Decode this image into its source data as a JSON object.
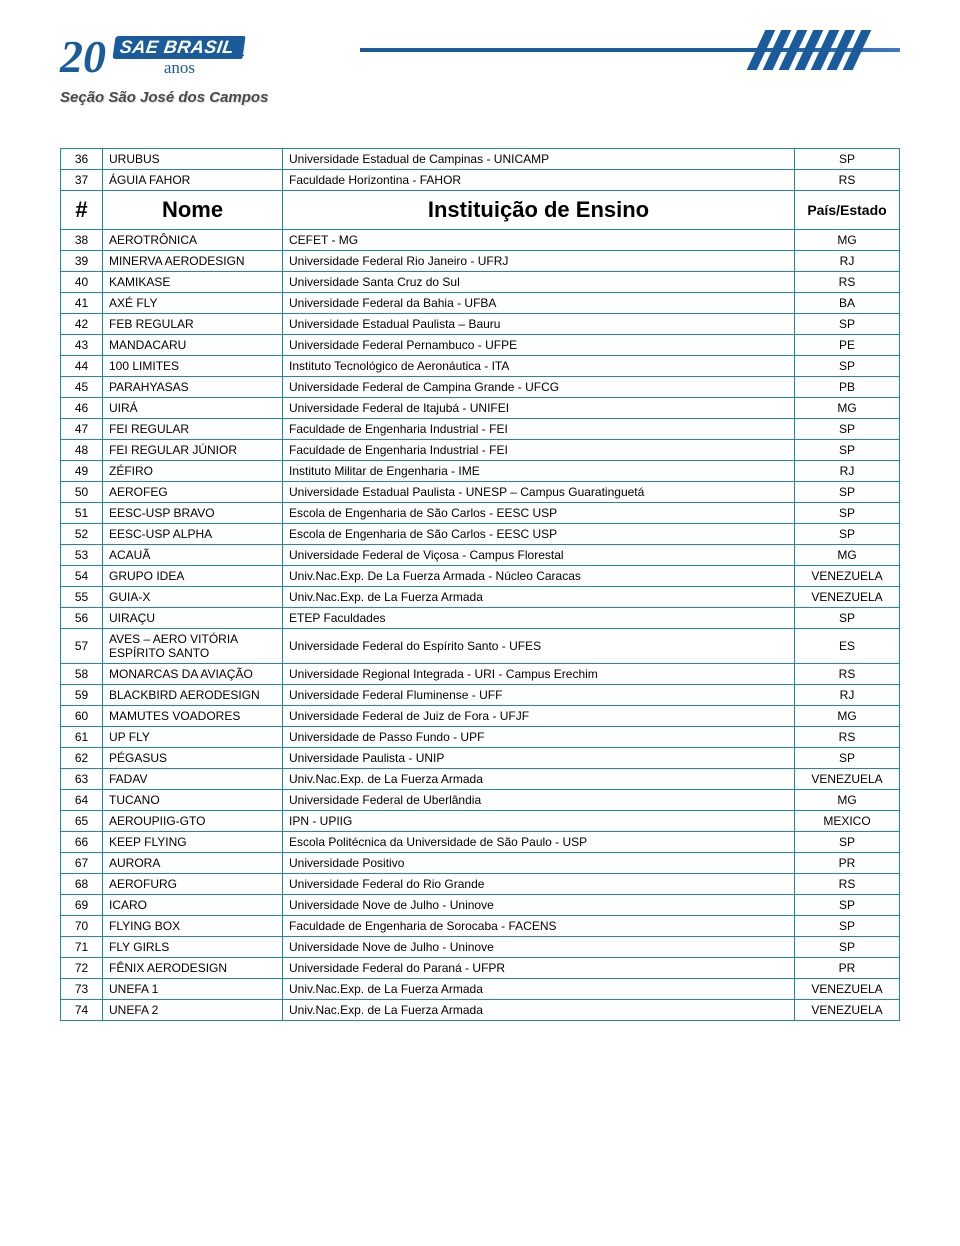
{
  "header": {
    "twenty": "20",
    "sae": "SAE BRASIL",
    "anos": "anos",
    "secao": "Seção São José dos Campos"
  },
  "colors": {
    "border": "#1a8ba8",
    "brand": "#1a5b9c",
    "text": "#000000",
    "bg": "#ffffff"
  },
  "table": {
    "header": {
      "num": "#",
      "nome": "Nome",
      "inst": "Instituição de Ensino",
      "estado": "País/Estado"
    },
    "header_row_index": 2,
    "rows": [
      {
        "n": "36",
        "nome": "URUBUS",
        "inst": "Universidade Estadual de Campinas - UNICAMP",
        "e": "SP"
      },
      {
        "n": "37",
        "nome": "ÁGUIA FAHOR",
        "inst": "Faculdade Horizontina - FAHOR",
        "e": "RS"
      },
      {
        "n": "38",
        "nome": "AEROTRÔNICA",
        "inst": "CEFET - MG",
        "e": "MG"
      },
      {
        "n": "39",
        "nome": "MINERVA AERODESIGN",
        "inst": "Universidade Federal Rio Janeiro - UFRJ",
        "e": "RJ"
      },
      {
        "n": "40",
        "nome": "KAMIKASE",
        "inst": "Universidade Santa Cruz do Sul",
        "e": "RS"
      },
      {
        "n": "41",
        "nome": "AXÉ FLY",
        "inst": "Universidade Federal da Bahia - UFBA",
        "e": "BA"
      },
      {
        "n": "42",
        "nome": "FEB REGULAR",
        "inst": "Universidade Estadual Paulista – Bauru",
        "e": "SP"
      },
      {
        "n": "43",
        "nome": "MANDACARU",
        "inst": "Universidade Federal Pernambuco - UFPE",
        "e": "PE"
      },
      {
        "n": "44",
        "nome": "100 LIMITES",
        "inst": "Instituto Tecnológico de Aeronáutica - ITA",
        "e": "SP"
      },
      {
        "n": "45",
        "nome": "PARAHYASAS",
        "inst": "Universidade Federal de Campina Grande - UFCG",
        "e": "PB"
      },
      {
        "n": "46",
        "nome": "UIRÁ",
        "inst": "Universidade Federal de Itajubá - UNIFEI",
        "e": "MG"
      },
      {
        "n": "47",
        "nome": "FEI REGULAR",
        "inst": "Faculdade de Engenharia Industrial - FEI",
        "e": "SP"
      },
      {
        "n": "48",
        "nome": "FEI REGULAR JÚNIOR",
        "inst": "Faculdade de Engenharia Industrial - FEI",
        "e": "SP"
      },
      {
        "n": "49",
        "nome": "ZÉFIRO",
        "inst": "Instituto Militar de Engenharia - IME",
        "e": "RJ"
      },
      {
        "n": "50",
        "nome": "AEROFEG",
        "inst": "Universidade Estadual Paulista - UNESP –  Campus Guaratinguetá",
        "e": "SP"
      },
      {
        "n": "51",
        "nome": "EESC-USP BRAVO",
        "inst": "Escola de Engenharia de São Carlos - EESC USP",
        "e": "SP"
      },
      {
        "n": "52",
        "nome": "EESC-USP ALPHA",
        "inst": "Escola de Engenharia de São Carlos - EESC USP",
        "e": "SP"
      },
      {
        "n": "53",
        "nome": "ACAUÃ",
        "inst": "Universidade Federal de Viçosa - Campus Florestal",
        "e": "MG"
      },
      {
        "n": "54",
        "nome": "GRUPO IDEA",
        "inst": "Univ.Nac.Exp. De La Fuerza Armada - Núcleo Caracas",
        "e": "VENEZUELA"
      },
      {
        "n": "55",
        "nome": "GUIA-X",
        "inst": "Univ.Nac.Exp. de La Fuerza Armada",
        "e": "VENEZUELA"
      },
      {
        "n": "56",
        "nome": "UIRAÇU",
        "inst": "ETEP Faculdades",
        "e": "SP"
      },
      {
        "n": "57",
        "nome": "AVES – AERO VITÓRIA ESPÍRITO SANTO",
        "inst": "Universidade Federal do Espírito Santo  - UFES",
        "e": "ES"
      },
      {
        "n": "58",
        "nome": "MONARCAS DA AVIAÇÃO",
        "inst": "Universidade Regional Integrada - URI - Campus Erechim",
        "e": "RS"
      },
      {
        "n": "59",
        "nome": "BLACKBIRD AERODESIGN",
        "inst": "Universidade Federal Fluminense - UFF",
        "e": "RJ"
      },
      {
        "n": "60",
        "nome": "MAMUTES VOADORES",
        "inst": "Universidade Federal de Juiz de Fora  - UFJF",
        "e": "MG"
      },
      {
        "n": "61",
        "nome": "UP FLY",
        "inst": "Universidade de Passo Fundo - UPF",
        "e": "RS"
      },
      {
        "n": "62",
        "nome": "PÉGASUS",
        "inst": "Universidade Paulista - UNIP",
        "e": "SP"
      },
      {
        "n": "63",
        "nome": "FADAV",
        "inst": "Univ.Nac.Exp. de La Fuerza Armada",
        "e": "VENEZUELA"
      },
      {
        "n": "64",
        "nome": "TUCANO",
        "inst": "Universidade Federal de Uberlândia",
        "e": "MG"
      },
      {
        "n": "65",
        "nome": "AEROUPIIG-GTO",
        "inst": "IPN - UPIIG",
        "e": "MEXICO"
      },
      {
        "n": "66",
        "nome": "KEEP FLYING",
        "inst": "Escola Politécnica da Universidade de São Paulo - USP",
        "e": "SP"
      },
      {
        "n": "67",
        "nome": "AURORA",
        "inst": "Universidade Positivo",
        "e": "PR"
      },
      {
        "n": "68",
        "nome": "AEROFURG",
        "inst": "Universidade Federal do Rio Grande",
        "e": "RS"
      },
      {
        "n": "69",
        "nome": "ICARO",
        "inst": "Universidade Nove de Julho - Uninove",
        "e": "SP"
      },
      {
        "n": "70",
        "nome": "FLYING BOX",
        "inst": "Faculdade de Engenharia de Sorocaba - FACENS",
        "e": "SP"
      },
      {
        "n": "71",
        "nome": "FLY GIRLS",
        "inst": "Universidade Nove de Julho - Uninove",
        "e": "SP"
      },
      {
        "n": "72",
        "nome": "FÊNIX AERODESIGN",
        "inst": "Universidade Federal do Paraná - UFPR",
        "e": "PR"
      },
      {
        "n": "73",
        "nome": "UNEFA 1",
        "inst": "Univ.Nac.Exp. de La Fuerza Armada",
        "e": "VENEZUELA"
      },
      {
        "n": "74",
        "nome": "UNEFA 2",
        "inst": "Univ.Nac.Exp. de La Fuerza Armada",
        "e": "VENEZUELA"
      }
    ]
  }
}
